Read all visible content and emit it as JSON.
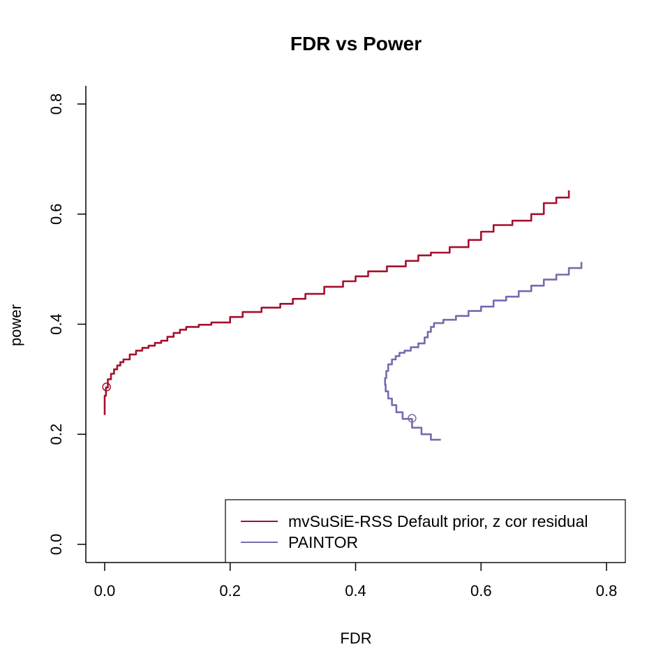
{
  "chart_data": {
    "type": "line",
    "title": "FDR vs Power",
    "xlabel": "FDR",
    "ylabel": "power",
    "xlim": [
      -0.03,
      0.83
    ],
    "ylim": [
      -0.033,
      0.833
    ],
    "xticks": [
      "0.0",
      "0.2",
      "0.4",
      "0.6",
      "0.8"
    ],
    "yticks": [
      "0.0",
      "0.2",
      "0.4",
      "0.6",
      "0.8"
    ],
    "grid": false,
    "legend_position": "bottom-right",
    "series": [
      {
        "name": "mvSuSiE-RSS Default prior, z cor residual",
        "color": "#a50f2d",
        "x": [
          0.0,
          0.0,
          0.0,
          0.002,
          0.005,
          0.01,
          0.015,
          0.02,
          0.025,
          0.03,
          0.04,
          0.05,
          0.06,
          0.07,
          0.08,
          0.09,
          0.1,
          0.11,
          0.12,
          0.13,
          0.15,
          0.17,
          0.2,
          0.22,
          0.25,
          0.28,
          0.3,
          0.32,
          0.35,
          0.38,
          0.4,
          0.42,
          0.45,
          0.48,
          0.5,
          0.52,
          0.55,
          0.58,
          0.6,
          0.62,
          0.65,
          0.68,
          0.7,
          0.72,
          0.74
        ],
        "y": [
          0.235,
          0.255,
          0.27,
          0.285,
          0.3,
          0.31,
          0.318,
          0.325,
          0.331,
          0.336,
          0.345,
          0.352,
          0.357,
          0.361,
          0.366,
          0.37,
          0.377,
          0.384,
          0.39,
          0.395,
          0.399,
          0.403,
          0.413,
          0.422,
          0.43,
          0.437,
          0.446,
          0.455,
          0.468,
          0.478,
          0.487,
          0.496,
          0.505,
          0.515,
          0.525,
          0.53,
          0.54,
          0.553,
          0.568,
          0.58,
          0.588,
          0.6,
          0.62,
          0.63,
          0.643
        ],
        "marker": [
          0.003,
          0.286
        ]
      },
      {
        "name": "PAINTOR",
        "color": "#7b68ae",
        "x": [
          0.536,
          0.52,
          0.505,
          0.49,
          0.475,
          0.465,
          0.458,
          0.452,
          0.448,
          0.447,
          0.449,
          0.452,
          0.458,
          0.464,
          0.47,
          0.478,
          0.488,
          0.5,
          0.51,
          0.515,
          0.52,
          0.525,
          0.54,
          0.56,
          0.58,
          0.6,
          0.62,
          0.64,
          0.66,
          0.68,
          0.7,
          0.72,
          0.74,
          0.76
        ],
        "y": [
          0.19,
          0.2,
          0.212,
          0.228,
          0.24,
          0.253,
          0.265,
          0.278,
          0.29,
          0.302,
          0.315,
          0.327,
          0.336,
          0.342,
          0.348,
          0.352,
          0.358,
          0.365,
          0.376,
          0.386,
          0.395,
          0.402,
          0.408,
          0.415,
          0.424,
          0.432,
          0.443,
          0.45,
          0.46,
          0.47,
          0.481,
          0.49,
          0.502,
          0.513
        ],
        "marker": [
          0.49,
          0.229
        ]
      }
    ]
  }
}
